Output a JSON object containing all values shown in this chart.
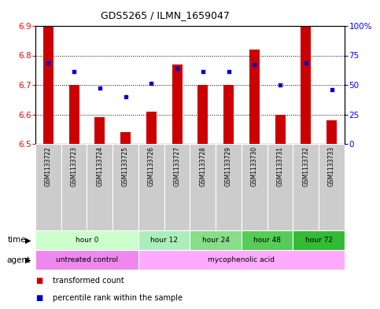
{
  "title": "GDS5265 / ILMN_1659047",
  "samples": [
    "GSM1133722",
    "GSM1133723",
    "GSM1133724",
    "GSM1133725",
    "GSM1133726",
    "GSM1133727",
    "GSM1133728",
    "GSM1133729",
    "GSM1133730",
    "GSM1133731",
    "GSM1133732",
    "GSM1133733"
  ],
  "bar_tops": [
    6.9,
    6.7,
    6.59,
    6.54,
    6.61,
    6.77,
    6.7,
    6.7,
    6.82,
    6.6,
    6.9,
    6.58
  ],
  "bar_bottom": 6.5,
  "dot_values": [
    6.775,
    6.745,
    6.69,
    6.66,
    6.705,
    6.755,
    6.745,
    6.745,
    6.77,
    6.7,
    6.775,
    6.685
  ],
  "ylim": [
    6.5,
    6.9
  ],
  "yticks_left": [
    6.5,
    6.6,
    6.7,
    6.8,
    6.9
  ],
  "yticks_right_vals": [
    0,
    25,
    50,
    75,
    100
  ],
  "yticks_right_labels": [
    "0",
    "25",
    "50",
    "75",
    "100%"
  ],
  "bar_color": "#cc0000",
  "dot_color": "#0000cc",
  "time_groups": [
    {
      "label": "hour 0",
      "start": 0,
      "end": 4,
      "color": "#ccffcc"
    },
    {
      "label": "hour 12",
      "start": 4,
      "end": 6,
      "color": "#aaeebb"
    },
    {
      "label": "hour 24",
      "start": 6,
      "end": 8,
      "color": "#88dd88"
    },
    {
      "label": "hour 48",
      "start": 8,
      "end": 10,
      "color": "#55cc55"
    },
    {
      "label": "hour 72",
      "start": 10,
      "end": 12,
      "color": "#33bb33"
    }
  ],
  "agent_groups": [
    {
      "label": "untreated control",
      "start": 0,
      "end": 4,
      "color": "#ee88ee"
    },
    {
      "label": "mycophenolic acid",
      "start": 4,
      "end": 12,
      "color": "#ffaaff"
    }
  ],
  "legend_bar_label": "transformed count",
  "legend_dot_label": "percentile rank within the sample",
  "bg_color": "#ffffff",
  "plot_bg": "#ffffff"
}
